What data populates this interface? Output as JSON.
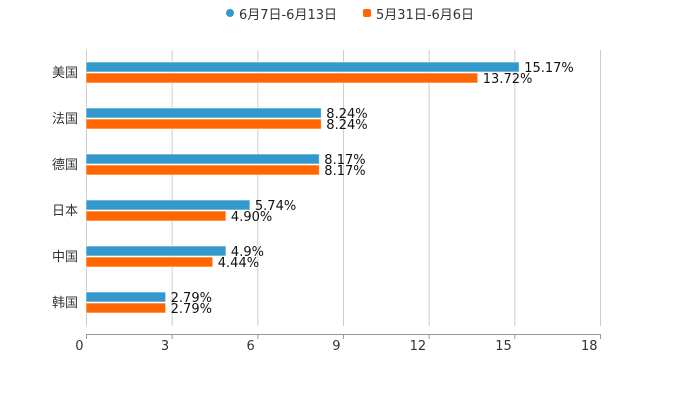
{
  "chart_data": {
    "type": "bar",
    "orientation": "horizontal",
    "title": "",
    "xlabel": "",
    "ylabel": "",
    "xlim": [
      0,
      18
    ],
    "x_ticks": [
      0,
      3,
      6,
      9,
      12,
      15,
      18
    ],
    "grid": true,
    "legend_position": "top",
    "categories": [
      "美国",
      "法国",
      "德国",
      "日本",
      "中国",
      "韩国"
    ],
    "series": [
      {
        "name": "6月7日-6月13日",
        "color": "#3399cc",
        "values": [
          15.17,
          8.24,
          8.17,
          5.74,
          4.9,
          2.79
        ],
        "labels": [
          "15.17%",
          "8.24%",
          "8.17%",
          "5.74%",
          "4.9%",
          "2.79%"
        ]
      },
      {
        "name": "5月31日-6月6日",
        "color": "#ff6600",
        "values": [
          13.72,
          8.24,
          8.17,
          4.9,
          4.44,
          2.79
        ],
        "labels": [
          "13.72%",
          "8.24%",
          "8.17%",
          "4.90%",
          "4.44%",
          "2.79%"
        ]
      }
    ]
  },
  "legend": {
    "items": [
      {
        "label": "6月7日-6月13日",
        "color": "#3399cc",
        "shape": "circle"
      },
      {
        "label": "5月31日-6月6日",
        "color": "#ff6600",
        "shape": "square"
      }
    ]
  }
}
